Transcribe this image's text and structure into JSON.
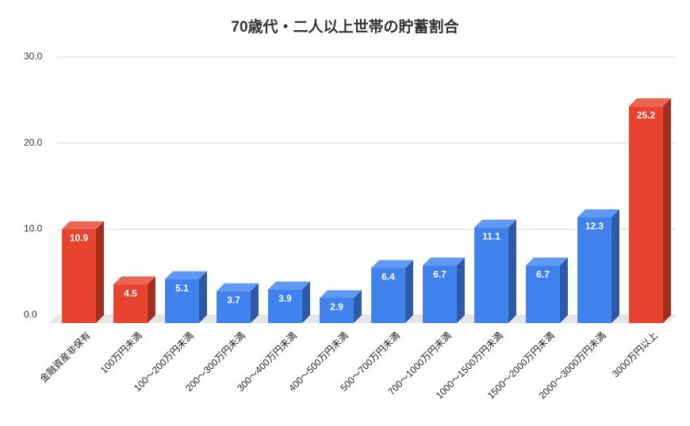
{
  "chart_data": {
    "type": "bar3d",
    "title": "70歳代・二人以上世帯の貯蓄割合",
    "categories": [
      "金融資産非保有",
      "100万円未満",
      "100〜200万円未満",
      "200〜300万円未満",
      "300〜400万円未満",
      "400〜500万円未満",
      "500〜700万円未満",
      "700〜1000万円未満",
      "1000〜1500万円未満",
      "1500〜2000万円未満",
      "2000〜3000万円未満",
      "3000万円以上"
    ],
    "values": [
      10.9,
      4.5,
      5.1,
      3.7,
      3.9,
      2.9,
      6.4,
      6.7,
      11.1,
      6.7,
      12.3,
      25.2
    ],
    "colors": [
      "#e8432f",
      "#e8432f",
      "#3f82ee",
      "#3f82ee",
      "#3f82ee",
      "#3f82ee",
      "#3f82ee",
      "#3f82ee",
      "#3f82ee",
      "#3f82ee",
      "#3f82ee",
      "#e8432f"
    ],
    "ylim": [
      0,
      30
    ],
    "yticks": [
      {
        "value": 0,
        "label": "0.0"
      },
      {
        "value": 10,
        "label": "10.0"
      },
      {
        "value": 20,
        "label": "20.0"
      },
      {
        "value": 30,
        "label": "30.0"
      }
    ],
    "grid": true
  }
}
